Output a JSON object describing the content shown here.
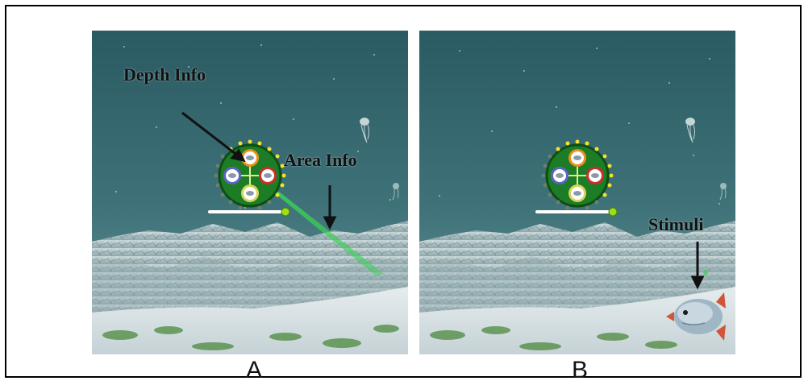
{
  "panels": [
    {
      "id": "A",
      "label": "A"
    },
    {
      "id": "B",
      "label": "B"
    }
  ],
  "annotations": {
    "depth_info": "Depth Info",
    "area_info": "Area Info",
    "stimuli": "Stimuli"
  },
  "colors": {
    "water_top": "#2b5e66",
    "water_bottom": "#5f9096",
    "hud_green": "#1f8a2a",
    "hud_ring": "#0e5418",
    "laser": "#33c24a",
    "slider_knob": "#9be016",
    "seabed": "#d9e2e6"
  },
  "hud_icons": [
    "fish-icon-top",
    "fish-icon-left",
    "fish-icon-right",
    "fish-icon-bottom"
  ]
}
